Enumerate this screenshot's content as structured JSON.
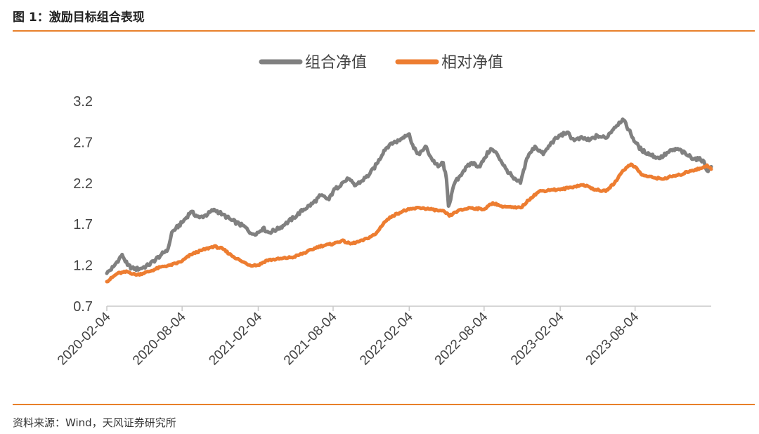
{
  "figure": {
    "title": "图 1：激励目标组合表现",
    "source": "资料来源：Wind，天风证券研究所"
  },
  "chart_data": {
    "type": "line",
    "title": "",
    "xlabel": "",
    "ylabel": "",
    "ylim": [
      0.7,
      3.2
    ],
    "yticks": [
      "3.2",
      "2.7",
      "2.2",
      "1.7",
      "1.2",
      "0.7"
    ],
    "xticks": [
      "2020-02-04",
      "2020-08-04",
      "2021-02-04",
      "2021-08-04",
      "2022-02-04",
      "2022-08-04",
      "2023-02-04",
      "2023-08-04"
    ],
    "xrange": [
      "2020-02-04",
      "2024-02-04"
    ],
    "grid": false,
    "legend_position": "top-center",
    "series": [
      {
        "name": "组合净值",
        "color": "#808080",
        "points": [
          [
            "2020-02-04",
            1.1
          ],
          [
            "2020-02-20",
            1.18
          ],
          [
            "2020-03-05",
            1.28
          ],
          [
            "2020-03-12",
            1.33
          ],
          [
            "2020-03-25",
            1.2
          ],
          [
            "2020-04-10",
            1.15
          ],
          [
            "2020-04-25",
            1.16
          ],
          [
            "2020-05-15",
            1.2
          ],
          [
            "2020-06-01",
            1.27
          ],
          [
            "2020-06-15",
            1.33
          ],
          [
            "2020-07-01",
            1.4
          ],
          [
            "2020-07-10",
            1.6
          ],
          [
            "2020-07-20",
            1.65
          ],
          [
            "2020-08-04",
            1.72
          ],
          [
            "2020-08-25",
            1.85
          ],
          [
            "2020-09-15",
            1.78
          ],
          [
            "2020-10-05",
            1.82
          ],
          [
            "2020-10-20",
            1.88
          ],
          [
            "2020-11-10",
            1.82
          ],
          [
            "2020-12-01",
            1.75
          ],
          [
            "2020-12-20",
            1.7
          ],
          [
            "2021-01-05",
            1.66
          ],
          [
            "2021-01-20",
            1.58
          ],
          [
            "2021-02-04",
            1.6
          ],
          [
            "2021-02-15",
            1.65
          ],
          [
            "2021-03-01",
            1.6
          ],
          [
            "2021-03-20",
            1.63
          ],
          [
            "2021-04-10",
            1.7
          ],
          [
            "2021-05-01",
            1.78
          ],
          [
            "2021-05-25",
            1.88
          ],
          [
            "2021-06-15",
            1.95
          ],
          [
            "2021-07-05",
            2.05
          ],
          [
            "2021-07-25",
            2.0
          ],
          [
            "2021-08-04",
            2.1
          ],
          [
            "2021-08-25",
            2.2
          ],
          [
            "2021-09-10",
            2.25
          ],
          [
            "2021-09-25",
            2.17
          ],
          [
            "2021-10-10",
            2.22
          ],
          [
            "2021-10-30",
            2.3
          ],
          [
            "2021-11-20",
            2.45
          ],
          [
            "2021-12-05",
            2.6
          ],
          [
            "2021-12-20",
            2.68
          ],
          [
            "2022-01-10",
            2.72
          ],
          [
            "2022-01-25",
            2.78
          ],
          [
            "2022-02-04",
            2.8
          ],
          [
            "2022-02-15",
            2.62
          ],
          [
            "2022-03-01",
            2.55
          ],
          [
            "2022-03-15",
            2.65
          ],
          [
            "2022-03-30",
            2.5
          ],
          [
            "2022-04-15",
            2.4
          ],
          [
            "2022-04-27",
            2.45
          ],
          [
            "2022-05-05",
            2.25
          ],
          [
            "2022-05-10",
            1.92
          ],
          [
            "2022-05-25",
            2.2
          ],
          [
            "2022-06-15",
            2.35
          ],
          [
            "2022-07-05",
            2.45
          ],
          [
            "2022-07-25",
            2.4
          ],
          [
            "2022-08-04",
            2.5
          ],
          [
            "2022-08-20",
            2.62
          ],
          [
            "2022-09-05",
            2.55
          ],
          [
            "2022-09-25",
            2.38
          ],
          [
            "2022-10-15",
            2.25
          ],
          [
            "2022-10-31",
            2.2
          ],
          [
            "2022-11-15",
            2.5
          ],
          [
            "2022-12-05",
            2.65
          ],
          [
            "2022-12-25",
            2.55
          ],
          [
            "2023-01-15",
            2.7
          ],
          [
            "2023-02-04",
            2.78
          ],
          [
            "2023-02-20",
            2.82
          ],
          [
            "2023-03-10",
            2.72
          ],
          [
            "2023-03-30",
            2.75
          ],
          [
            "2023-04-15",
            2.72
          ],
          [
            "2023-05-05",
            2.78
          ],
          [
            "2023-05-25",
            2.75
          ],
          [
            "2023-06-15",
            2.88
          ],
          [
            "2023-07-05",
            2.98
          ],
          [
            "2023-07-20",
            2.85
          ],
          [
            "2023-08-04",
            2.7
          ],
          [
            "2023-08-20",
            2.6
          ],
          [
            "2023-09-10",
            2.55
          ],
          [
            "2023-10-01",
            2.5
          ],
          [
            "2023-10-25",
            2.58
          ],
          [
            "2023-11-15",
            2.62
          ],
          [
            "2023-12-05",
            2.55
          ],
          [
            "2023-12-25",
            2.5
          ],
          [
            "2024-01-15",
            2.48
          ],
          [
            "2024-01-25",
            2.35
          ],
          [
            "2024-02-04",
            2.4
          ]
        ]
      },
      {
        "name": "相对净值",
        "color": "#ed7d31",
        "points": [
          [
            "2020-02-04",
            1.0
          ],
          [
            "2020-03-01",
            1.1
          ],
          [
            "2020-03-25",
            1.12
          ],
          [
            "2020-04-15",
            1.08
          ],
          [
            "2020-05-15",
            1.12
          ],
          [
            "2020-06-15",
            1.18
          ],
          [
            "2020-07-05",
            1.2
          ],
          [
            "2020-07-20",
            1.22
          ],
          [
            "2020-08-04",
            1.25
          ],
          [
            "2020-08-25",
            1.33
          ],
          [
            "2020-09-20",
            1.38
          ],
          [
            "2020-10-20",
            1.43
          ],
          [
            "2020-11-10",
            1.4
          ],
          [
            "2020-12-01",
            1.32
          ],
          [
            "2020-12-25",
            1.25
          ],
          [
            "2021-01-15",
            1.2
          ],
          [
            "2021-02-04",
            1.2
          ],
          [
            "2021-02-25",
            1.26
          ],
          [
            "2021-04-01",
            1.28
          ],
          [
            "2021-05-01",
            1.3
          ],
          [
            "2021-06-01",
            1.36
          ],
          [
            "2021-07-01",
            1.43
          ],
          [
            "2021-08-04",
            1.46
          ],
          [
            "2021-08-25",
            1.5
          ],
          [
            "2021-09-15",
            1.46
          ],
          [
            "2021-10-15",
            1.5
          ],
          [
            "2021-11-15",
            1.58
          ],
          [
            "2021-12-05",
            1.72
          ],
          [
            "2021-12-25",
            1.8
          ],
          [
            "2022-01-20",
            1.86
          ],
          [
            "2022-02-04",
            1.88
          ],
          [
            "2022-03-01",
            1.9
          ],
          [
            "2022-04-01",
            1.88
          ],
          [
            "2022-05-01",
            1.85
          ],
          [
            "2022-05-12",
            1.8
          ],
          [
            "2022-06-01",
            1.86
          ],
          [
            "2022-07-01",
            1.9
          ],
          [
            "2022-08-04",
            1.88
          ],
          [
            "2022-08-25",
            1.96
          ],
          [
            "2022-09-15",
            1.92
          ],
          [
            "2022-10-15",
            1.9
          ],
          [
            "2022-11-01",
            1.9
          ],
          [
            "2022-11-25",
            2.02
          ],
          [
            "2022-12-15",
            2.1
          ],
          [
            "2023-01-15",
            2.12
          ],
          [
            "2023-02-04",
            2.12
          ],
          [
            "2023-03-01",
            2.15
          ],
          [
            "2023-04-01",
            2.18
          ],
          [
            "2023-05-01",
            2.12
          ],
          [
            "2023-05-25",
            2.1
          ],
          [
            "2023-06-15",
            2.2
          ],
          [
            "2023-07-05",
            2.35
          ],
          [
            "2023-07-25",
            2.43
          ],
          [
            "2023-08-04",
            2.4
          ],
          [
            "2023-08-20",
            2.3
          ],
          [
            "2023-09-15",
            2.27
          ],
          [
            "2023-10-10",
            2.25
          ],
          [
            "2023-10-30",
            2.28
          ],
          [
            "2023-11-20",
            2.3
          ],
          [
            "2023-12-15",
            2.35
          ],
          [
            "2024-01-10",
            2.38
          ],
          [
            "2024-01-25",
            2.42
          ],
          [
            "2024-02-04",
            2.37
          ]
        ]
      }
    ]
  }
}
